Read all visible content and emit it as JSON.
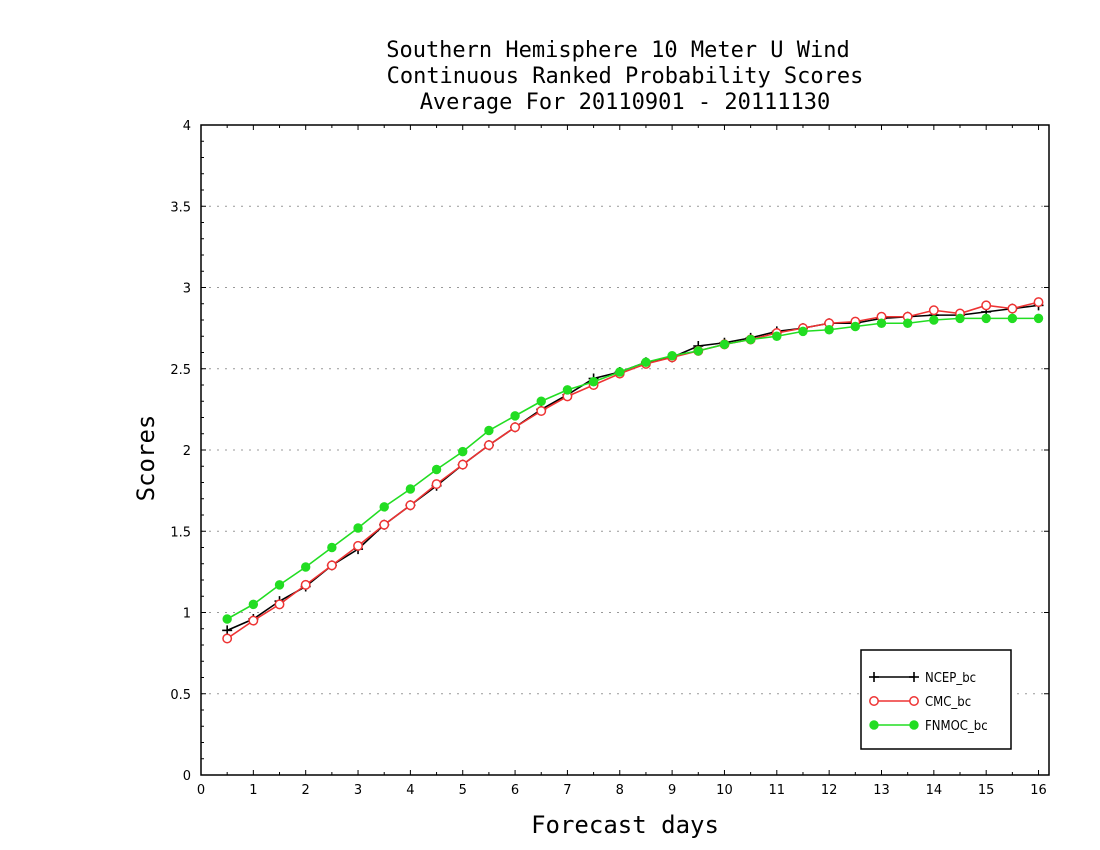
{
  "chart_data": {
    "type": "line",
    "title": [
      "Southern Hemisphere 10 Meter U Wind",
      "Continuous Ranked Probability Scores",
      "Average For 20110901 - 20111130"
    ],
    "xlabel": "Forecast days",
    "ylabel": "Scores",
    "xlim": [
      0,
      16.2
    ],
    "ylim": [
      0,
      4
    ],
    "x_ticks": [
      0,
      1,
      2,
      3,
      4,
      5,
      6,
      7,
      8,
      9,
      10,
      11,
      12,
      13,
      14,
      15,
      16
    ],
    "y_ticks": [
      0,
      0.5,
      1,
      1.5,
      2,
      2.5,
      3,
      3.5,
      4
    ],
    "y_tick_labels": [
      "0",
      "0.5",
      "1",
      "1.5",
      "2",
      "2.5",
      "3",
      "3.5",
      "4"
    ],
    "grid": "horizontal dotted",
    "legend_position": "bottom-right",
    "x": [
      0.5,
      1.0,
      1.5,
      2.0,
      2.5,
      3.0,
      3.5,
      4.0,
      4.5,
      5.0,
      5.5,
      6.0,
      6.5,
      7.0,
      7.5,
      8.0,
      8.5,
      9.0,
      9.5,
      10.0,
      10.5,
      11.0,
      11.5,
      12.0,
      12.5,
      13.0,
      13.5,
      14.0,
      14.5,
      15.0,
      15.5,
      16.0
    ],
    "series": [
      {
        "name": "NCEP_bc",
        "color": "#000000",
        "marker": "plus",
        "values": [
          0.89,
          0.96,
          1.07,
          1.16,
          1.29,
          1.39,
          1.54,
          1.66,
          1.78,
          1.91,
          2.03,
          2.14,
          2.25,
          2.34,
          2.44,
          2.48,
          2.54,
          2.57,
          2.64,
          2.66,
          2.69,
          2.73,
          2.75,
          2.78,
          2.78,
          2.81,
          2.82,
          2.83,
          2.83,
          2.85,
          2.87,
          2.89
        ]
      },
      {
        "name": "CMC_bc",
        "color": "#ee3333",
        "marker": "open-circle",
        "values": [
          0.84,
          0.95,
          1.05,
          1.17,
          1.29,
          1.41,
          1.54,
          1.66,
          1.79,
          1.91,
          2.03,
          2.14,
          2.24,
          2.33,
          2.4,
          2.47,
          2.53,
          2.57,
          2.61,
          2.65,
          2.68,
          2.72,
          2.75,
          2.78,
          2.79,
          2.82,
          2.82,
          2.86,
          2.84,
          2.89,
          2.87,
          2.91
        ]
      },
      {
        "name": "FNMOC_bc",
        "color": "#22dd22",
        "marker": "filled-circle",
        "values": [
          0.96,
          1.05,
          1.17,
          1.28,
          1.4,
          1.52,
          1.65,
          1.76,
          1.88,
          1.99,
          2.12,
          2.21,
          2.3,
          2.37,
          2.42,
          2.48,
          2.54,
          2.58,
          2.61,
          2.65,
          2.68,
          2.7,
          2.73,
          2.74,
          2.76,
          2.78,
          2.78,
          2.8,
          2.81,
          2.81,
          2.81,
          2.81
        ]
      }
    ]
  }
}
